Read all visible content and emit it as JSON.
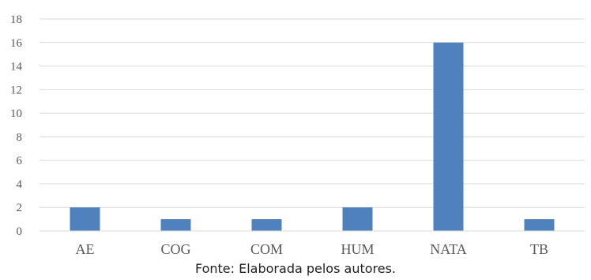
{
  "chart_data": {
    "type": "bar",
    "categories": [
      "AE",
      "COG",
      "COM",
      "HUM",
      "NATA",
      "TB"
    ],
    "values": [
      2,
      1,
      1,
      2,
      16,
      1
    ],
    "title": "",
    "xlabel": "",
    "ylabel": "",
    "ylim": [
      0,
      18
    ],
    "yticks": [
      0,
      2,
      4,
      6,
      8,
      10,
      12,
      14,
      16,
      18
    ],
    "grid": true,
    "legend": "none",
    "bar_color": "#4f81bd",
    "grid_color": "#d9d9d9"
  },
  "source_note": "Fonte: Elaborada pelos autores."
}
